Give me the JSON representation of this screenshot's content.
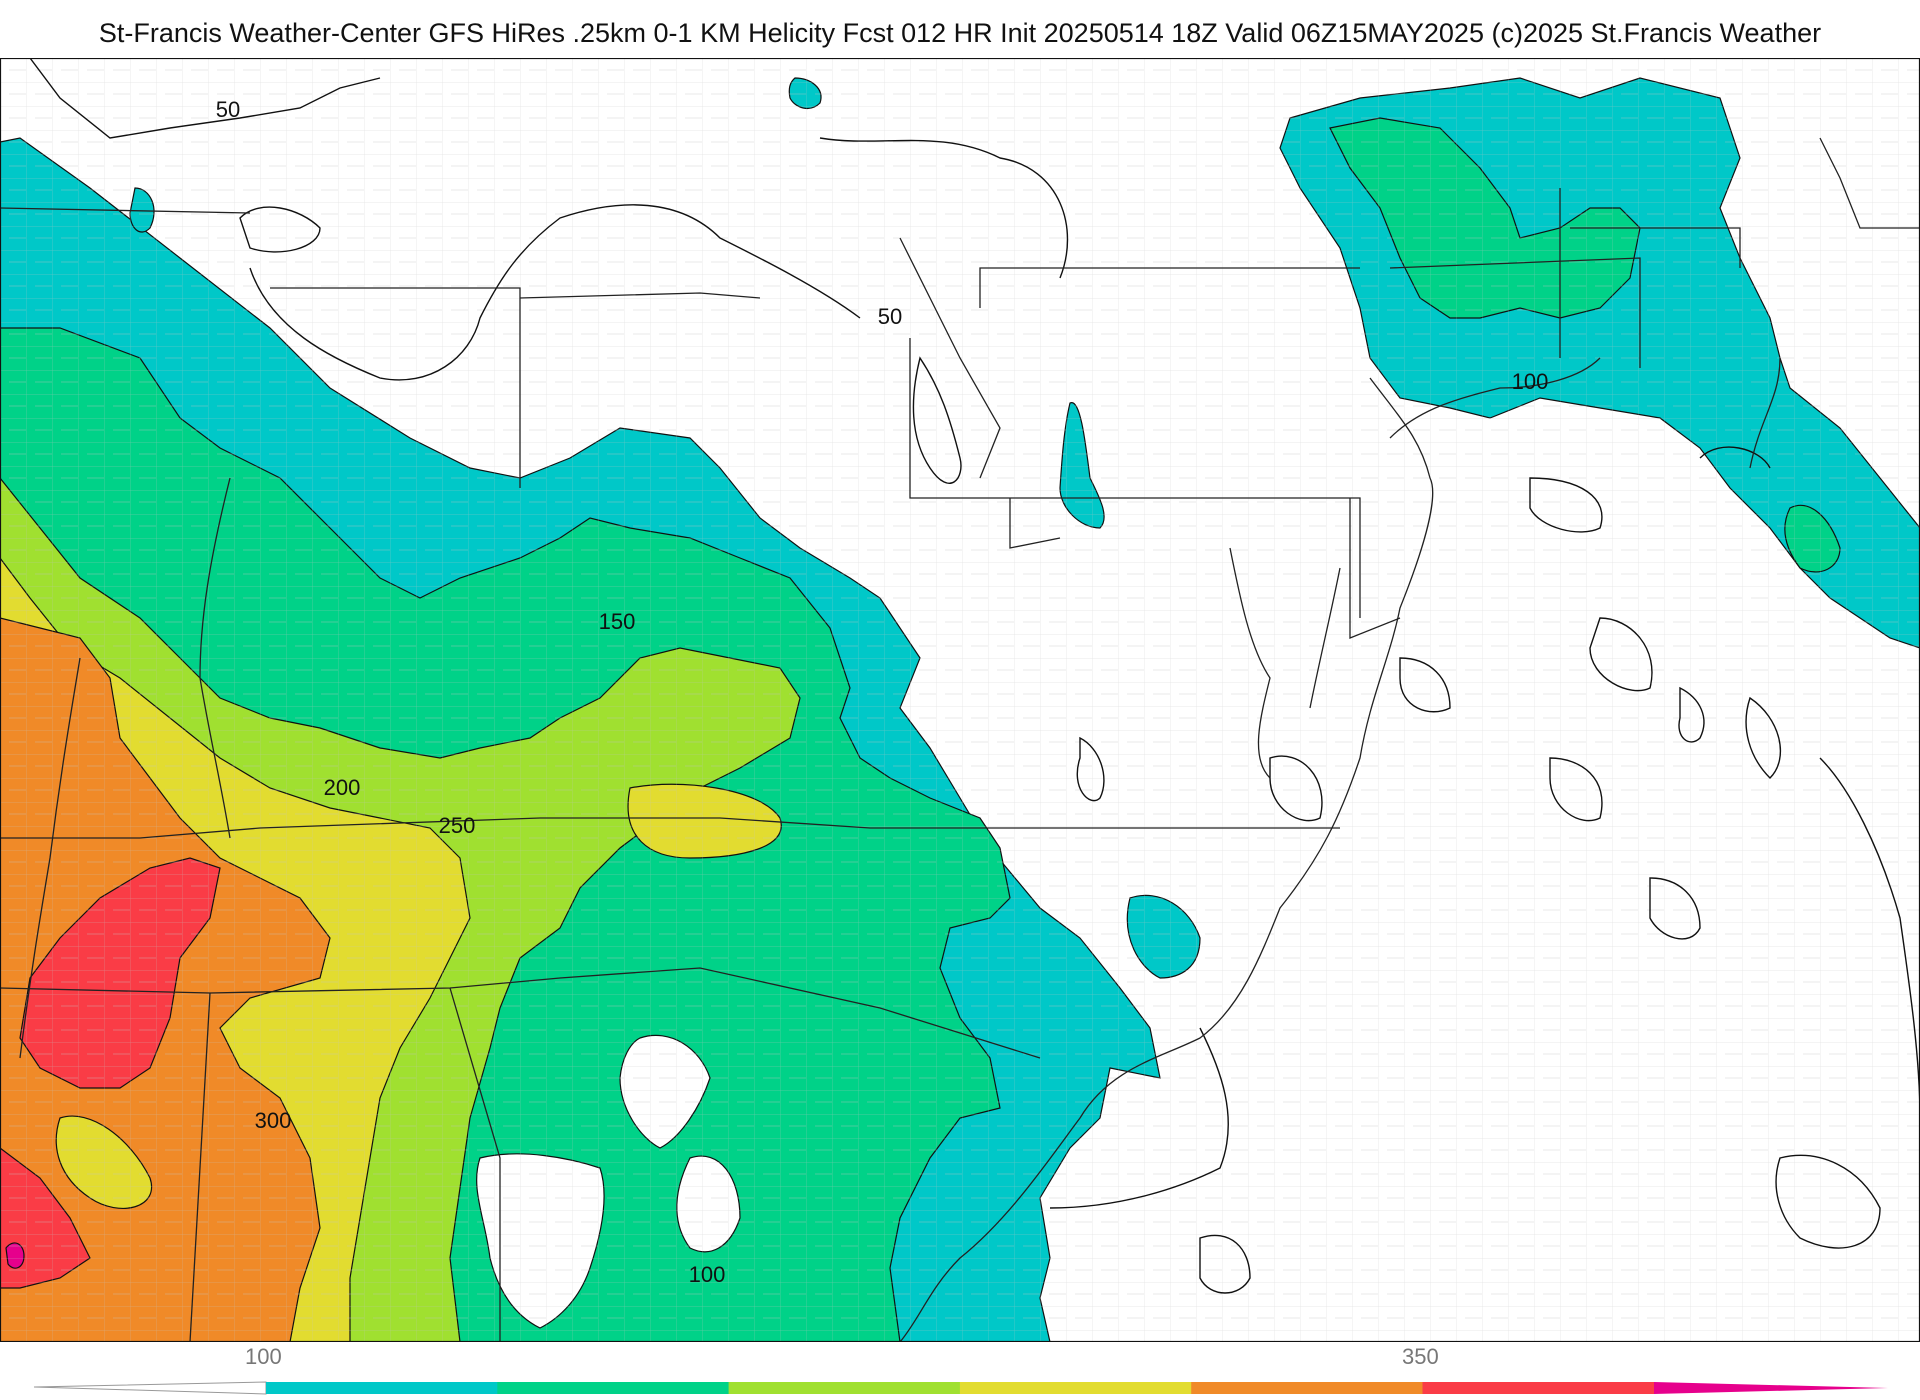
{
  "title": "St-Francis Weather-Center GFS HiRes .25km 0-1 KM Helicity Fcst 012 HR Init 20250514 18Z  Valid 06Z15MAY2025    (c)2025 St.Francis Weather",
  "colors": {
    "band_100_150": "#00c8c8",
    "band_150_200": "#00d288",
    "band_200_250": "#a0e030",
    "band_250_300": "#e2dc30",
    "band_300_350": "#f08a28",
    "band_350_400": "#fa3c46",
    "band_400_plus": "#e6008c",
    "contour": "#111111",
    "border": "#222222",
    "county": "#bdbdbd"
  },
  "contour_labels": [
    {
      "text": "50"
    },
    {
      "text": "50"
    },
    {
      "text": "100"
    },
    {
      "text": "150"
    },
    {
      "text": "200"
    },
    {
      "text": "250"
    },
    {
      "text": "300"
    },
    {
      "text": "100"
    }
  ],
  "legend": {
    "tick_labels": [
      "100",
      "350"
    ],
    "colors": [
      "#00c8c8",
      "#00d288",
      "#a0e030",
      "#e2dc30",
      "#f08a28",
      "#fa3c46",
      "#e6008c"
    ]
  }
}
